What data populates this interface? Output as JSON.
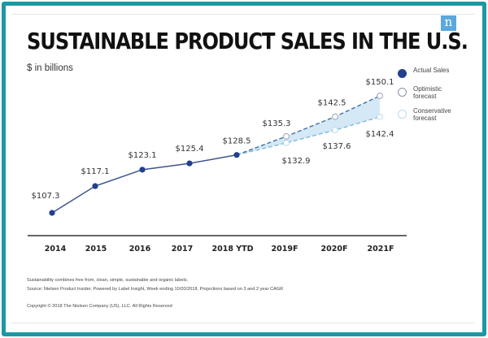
{
  "title": "SUSTAINABLE PRODUCT SALES IN THE U.S.",
  "subtitle": "$ in billions",
  "logo": "n",
  "colors": {
    "frame": "#1a98a3",
    "actual": "#22408f",
    "optimistic_line": "#3f6da0",
    "conservative_line": "#7fb8d8",
    "band": "#cfe6f5",
    "logo_bg": "#5aa8dd"
  },
  "legend": [
    {
      "key": "actual",
      "label": "Actual Sales"
    },
    {
      "key": "optimistic",
      "label": "Optimistic forecast"
    },
    {
      "key": "conservative",
      "label": "Conservative forecast"
    }
  ],
  "footnotes": {
    "note": "Sustainability combines free from, clean, simple, sustainable and organic labels.",
    "source": "Source: Nielsen Product Insider, Powered by Label Insight, Week ending 10/20/2018, Projections based on 3 and 2 year CAGR",
    "copyright": "Copyright © 2018 The Nielsen Company (US), LLC. All Rights Reserved"
  },
  "chart_data": {
    "type": "line",
    "title": "SUSTAINABLE PRODUCT SALES IN THE U.S.",
    "xlabel": "",
    "ylabel": "$ in billions",
    "categories": [
      "2014",
      "2015",
      "2016",
      "2017",
      "2018 YTD",
      "2019F",
      "2020F",
      "2021F"
    ],
    "ylim": [
      100,
      155
    ],
    "grid": false,
    "legend_position": "right",
    "series": [
      {
        "name": "Actual Sales",
        "values": [
          107.3,
          117.1,
          123.1,
          125.4,
          128.5,
          null,
          null,
          null
        ],
        "labels": [
          "$107.3",
          "$117.1",
          "$123.1",
          "$125.4",
          "$128.5"
        ]
      },
      {
        "name": "Optimistic forecast",
        "values": [
          null,
          null,
          null,
          null,
          128.5,
          135.3,
          142.5,
          150.1
        ],
        "labels": [
          "$135.3",
          "$142.5",
          "$150.1"
        ]
      },
      {
        "name": "Conservative forecast",
        "values": [
          null,
          null,
          null,
          null,
          128.5,
          132.9,
          137.6,
          142.4
        ],
        "labels": [
          "$132.9",
          "$137.6",
          "$142.4"
        ]
      }
    ]
  }
}
